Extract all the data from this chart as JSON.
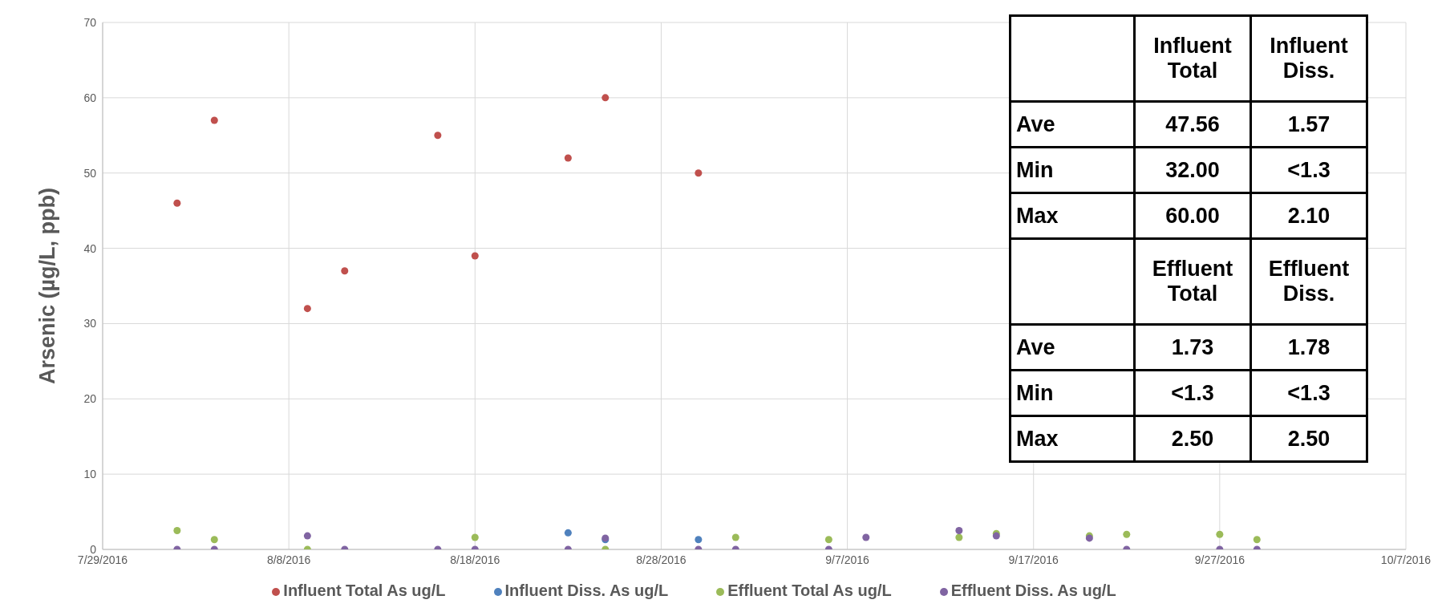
{
  "chart_data": {
    "type": "scatter",
    "ylabel": "Arsenic (µg/L, ppb)",
    "xlim": [
      "2016-07-29",
      "2016-10-07"
    ],
    "xticks": [
      {
        "value": "2016-07-29",
        "label": "7/29/2016"
      },
      {
        "value": "2016-08-08",
        "label": "8/8/2016"
      },
      {
        "value": "2016-08-18",
        "label": "8/18/2016"
      },
      {
        "value": "2016-08-28",
        "label": "8/28/2016"
      },
      {
        "value": "2016-09-07",
        "label": "9/7/2016"
      },
      {
        "value": "2016-09-17",
        "label": "9/17/2016"
      },
      {
        "value": "2016-09-27",
        "label": "9/27/2016"
      },
      {
        "value": "2016-10-07",
        "label": "10/7/2016"
      }
    ],
    "ylim": [
      0,
      70
    ],
    "yticks": [
      0,
      10,
      20,
      30,
      40,
      50,
      60,
      70
    ],
    "grid": true,
    "legend": "bottom",
    "marker": "circle",
    "series": [
      {
        "name": "Influent Total  As ug/L",
        "color": "#c0504d",
        "x": [
          "2016-08-02",
          "2016-08-04",
          "2016-08-09",
          "2016-08-11",
          "2016-08-16",
          "2016-08-18",
          "2016-08-23",
          "2016-08-25",
          "2016-08-30"
        ],
        "values": [
          46,
          57,
          32,
          37,
          55,
          39,
          52,
          60,
          50
        ]
      },
      {
        "name": "Influent Diss. As ug/L",
        "color": "#4f81bd",
        "x": [
          "2016-08-23",
          "2016-08-25",
          "2016-08-30"
        ],
        "values": [
          2.2,
          1.3,
          1.3
        ]
      },
      {
        "name": "Effluent Total As ug/L",
        "color": "#9bbb59",
        "x": [
          "2016-08-02",
          "2016-08-04",
          "2016-08-09",
          "2016-08-18",
          "2016-08-25",
          "2016-09-01",
          "2016-09-06",
          "2016-09-13",
          "2016-09-15",
          "2016-09-20",
          "2016-09-22",
          "2016-09-27",
          "2016-09-29"
        ],
        "values": [
          2.5,
          1.3,
          0,
          1.6,
          0,
          1.6,
          1.3,
          1.6,
          2.1,
          1.8,
          2.0,
          2.0,
          1.3
        ]
      },
      {
        "name": "Effluent Diss. As ug/L",
        "color": "#8064a2",
        "x": [
          "2016-08-02",
          "2016-08-04",
          "2016-08-09",
          "2016-08-11",
          "2016-08-16",
          "2016-08-18",
          "2016-08-23",
          "2016-08-25",
          "2016-08-30",
          "2016-09-01",
          "2016-09-06",
          "2016-09-08",
          "2016-09-13",
          "2016-09-15",
          "2016-09-20",
          "2016-09-22",
          "2016-09-27",
          "2016-09-29"
        ],
        "values": [
          0,
          0,
          1.8,
          0,
          0,
          0,
          0,
          1.5,
          0,
          0,
          0,
          1.6,
          2.5,
          1.8,
          1.5,
          0,
          0,
          0
        ]
      }
    ],
    "annotations": [
      "Influent Total",
      "Influent Diss.",
      "Ave",
      "47.56",
      "1.57",
      "Min",
      "32.00",
      "<1.3",
      "Max",
      "60.00",
      "2.10",
      "Effluent Total",
      "Effluent Diss.",
      "Ave",
      "1.73",
      "1.78",
      "Min",
      "<1.3",
      "<1.3",
      "Max",
      "2.50",
      "2.50"
    ]
  }
}
